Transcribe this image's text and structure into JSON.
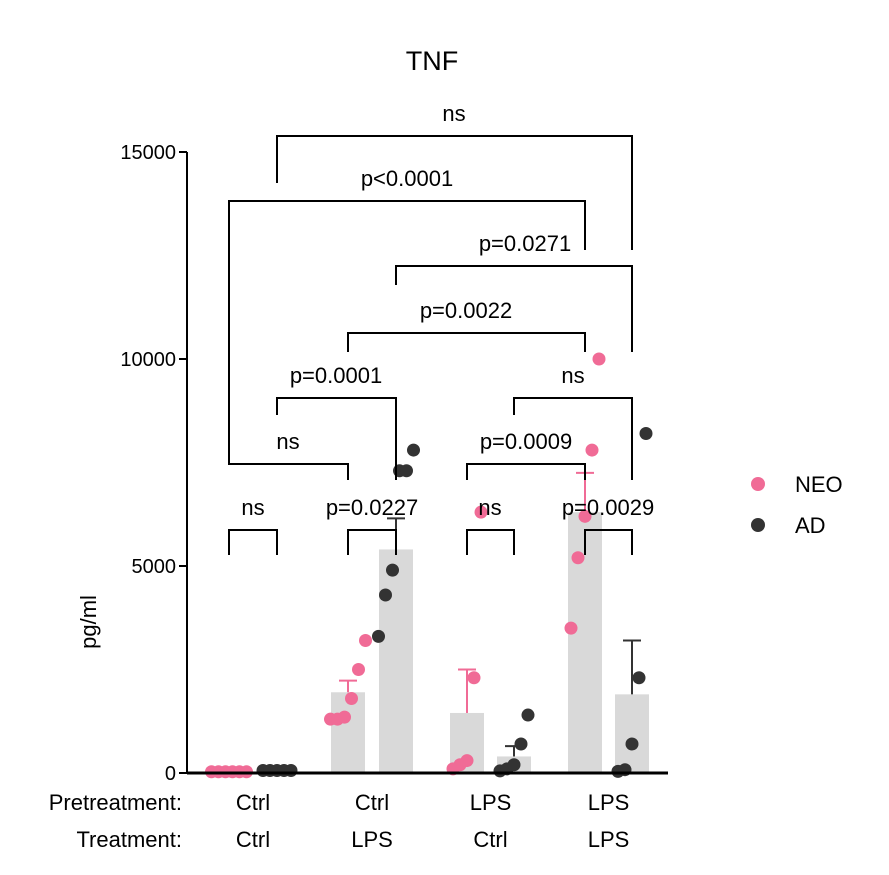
{
  "chart_data": {
    "type": "bar",
    "title": "TNF",
    "ylabel": "pg/ml",
    "ylim": [
      0,
      15000
    ],
    "yticks": [
      0,
      5000,
      10000,
      15000
    ],
    "ytick_labels": [
      "0",
      "5000",
      "10000",
      "15000"
    ],
    "row_labels": [
      "Pretreatment:",
      "Treatment:"
    ],
    "groups": [
      {
        "pretreatment": "Ctrl",
        "treatment": "Ctrl"
      },
      {
        "pretreatment": "Ctrl",
        "treatment": "LPS"
      },
      {
        "pretreatment": "LPS",
        "treatment": "Ctrl"
      },
      {
        "pretreatment": "LPS",
        "treatment": "LPS"
      }
    ],
    "series": [
      {
        "name": "NEO",
        "color": "#f06b96",
        "means": [
          40,
          1950,
          1450,
          6300
        ],
        "sem": [
          20,
          280,
          1050,
          950
        ],
        "points": [
          [
            30,
            30,
            30,
            30,
            30,
            30
          ],
          [
            1300,
            1300,
            1350,
            1800,
            2500,
            3200
          ],
          [
            100,
            200,
            300,
            2300,
            6300
          ],
          [
            3500,
            5200,
            6200,
            7800,
            10000
          ]
        ]
      },
      {
        "name": "AD",
        "color": "#333333",
        "means": [
          70,
          5400,
          400,
          1900
        ],
        "sem": [
          20,
          750,
          250,
          1300
        ],
        "points": [
          [
            60,
            60,
            60,
            60,
            60
          ],
          [
            3300,
            4300,
            4900,
            7300,
            7300,
            7800
          ],
          [
            50,
            100,
            200,
            700,
            1400
          ],
          [
            40,
            80,
            700,
            2300,
            8200
          ]
        ]
      }
    ],
    "legend": {
      "position": "right",
      "entries": [
        "NEO",
        "AD"
      ]
    },
    "comparisons": [
      {
        "label": "ns",
        "from": "Ctrl/Ctrl NEO",
        "to": "Ctrl/Ctrl AD"
      },
      {
        "label": "p=0.0227",
        "from": "Ctrl/LPS NEO",
        "to": "Ctrl/LPS AD"
      },
      {
        "label": "ns",
        "from": "LPS/Ctrl NEO",
        "to": "LPS/Ctrl AD"
      },
      {
        "label": "p=0.0029",
        "from": "LPS/LPS NEO",
        "to": "LPS/LPS AD"
      },
      {
        "label": "ns",
        "from": "Ctrl/Ctrl NEO",
        "to": "Ctrl/LPS NEO"
      },
      {
        "label": "p=0.0009",
        "from": "LPS/Ctrl NEO",
        "to": "LPS/LPS NEO"
      },
      {
        "label": "p=0.0001",
        "from": "Ctrl/Ctrl AD",
        "to": "Ctrl/LPS AD"
      },
      {
        "label": "ns",
        "from": "LPS/Ctrl AD",
        "to": "LPS/LPS AD"
      },
      {
        "label": "p=0.0022",
        "from": "Ctrl/LPS NEO",
        "to": "LPS/LPS NEO"
      },
      {
        "label": "p=0.0271",
        "from": "Ctrl/LPS AD",
        "to": "LPS/LPS AD"
      },
      {
        "label": "p<0.0001",
        "from": "Ctrl/Ctrl NEO",
        "to": "LPS/LPS NEO"
      },
      {
        "label": "ns",
        "from": "Ctrl/Ctrl AD",
        "to": "LPS/LPS AD"
      }
    ]
  }
}
